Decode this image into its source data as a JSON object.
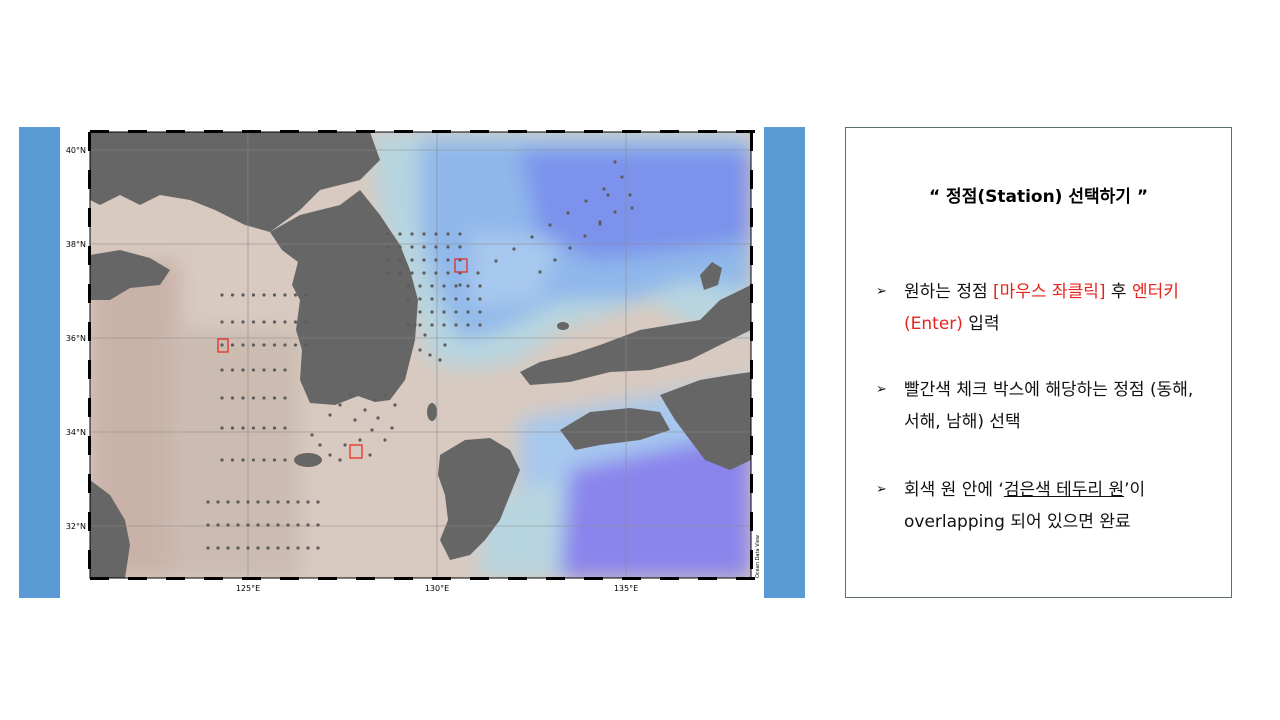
{
  "map": {
    "lat_labels": [
      "40°N",
      "38°N",
      "36°N",
      "34°N",
      "32°N"
    ],
    "lon_labels": [
      "125°E",
      "130°E",
      "135°E"
    ],
    "credit": "Ocean Data View",
    "colors": {
      "land": "#666666",
      "shelf": "#d8cac0",
      "shallow": "#c9b3a8",
      "mid": "#b7d5e0",
      "deep_a": "#8fb7ea",
      "deep_b": "#7c92ec",
      "deep_c": "#8a84ec",
      "station": "#5c5c5c",
      "marker": "#e8231d",
      "side_bars": "#5b9bd5"
    }
  },
  "panel": {
    "title": "“  정점(Station) 선택하기  ”",
    "bullet_icon": "arrow-bullet-icon",
    "items": [
      {
        "parts": [
          "원하는 정점 ",
          "[마우스 좌클릭]",
          " 후 ",
          "엔터키(Enter)",
          " 입력"
        ]
      },
      {
        "text": "빨간색 체크 박스에 해당하는 정점 (동해, 서해, 남해) 선택"
      },
      {
        "parts": [
          "회색 원 안에 ‘",
          "검은색 테두리 원",
          "’이 overlapping 되어 있으면 완료"
        ]
      }
    ]
  }
}
